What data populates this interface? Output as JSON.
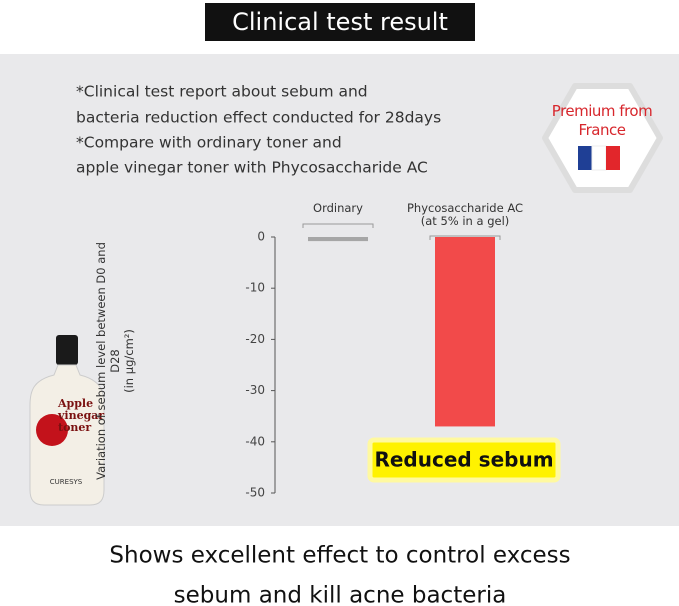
{
  "header": {
    "title": "Clinical test result"
  },
  "notes": [
    "*Clinical test report about sebum and",
    "bacteria reduction effect conducted for 28days",
    "*Compare with ordinary toner and",
    "apple vinegar toner with Phycosaccharide AC"
  ],
  "badge": {
    "text": "Premium from\nFrance"
  },
  "product": {
    "name": "Apple\nvinegar\ntoner",
    "brand": "CURESYS"
  },
  "chart_data": {
    "type": "bar",
    "categories": [
      "Ordinary",
      "Phycosaccharide AC\n(at 5% in a gel)"
    ],
    "series": [
      {
        "name": null,
        "colors": [
          "#a6a6a6",
          "#f24a4a"
        ],
        "values": [
          -0.8,
          -37
        ]
      }
    ],
    "ylabel": "Variation of sebum level between D0 and D28\n(in µg/cm²)",
    "ylim": [
      0,
      -50
    ],
    "yticks": [
      0,
      -10,
      -20,
      -30,
      -40,
      -50
    ],
    "annotation": "Reduced sebum"
  },
  "footer": [
    "Shows excellent effect to control excess",
    "sebum and kill acne bacteria"
  ]
}
